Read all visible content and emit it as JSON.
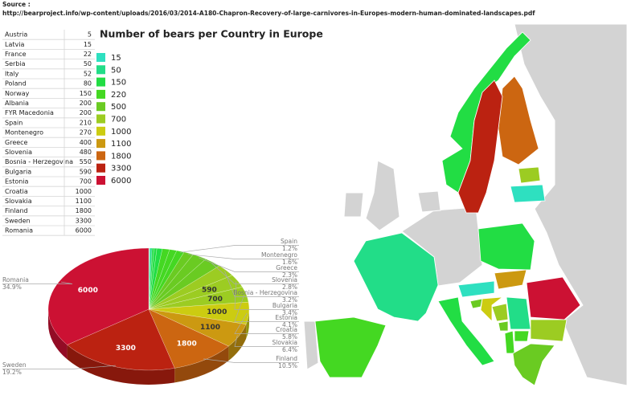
{
  "source": {
    "label": "Source :",
    "url": "http://bearproject.info/wp-content/uploads/2016/03/2014-A180-Chapron-Recovery-of-large-carnivores-in-Europes-modern-human-dominated-landscapes.pdf"
  },
  "chart_data": {
    "type": "pie",
    "title": "Number of bears per Country in Europe",
    "categories": [
      "Austria",
      "Latvia",
      "France",
      "Serbia",
      "Italy",
      "Poland",
      "Norway",
      "Albania",
      "FYR Macedonia",
      "Spain",
      "Montenegro",
      "Greece",
      "Slovenia",
      "Bosnia - Herzegovina",
      "Bulgaria",
      "Estonia",
      "Croatia",
      "Slovakia",
      "Finland",
      "Sweden",
      "Romania"
    ],
    "values": [
      5,
      15,
      22,
      50,
      52,
      80,
      150,
      200,
      200,
      210,
      270,
      400,
      480,
      550,
      590,
      700,
      1000,
      1100,
      1800,
      3300,
      6000
    ],
    "percent_labels": [
      null,
      null,
      null,
      null,
      null,
      null,
      null,
      null,
      null,
      "1.2%",
      "1.6%",
      "2.3%",
      "2.8%",
      "3.2%",
      "3.4%",
      "4.1%",
      "5.8%",
      "6.4%",
      "10.5%",
      "19.2%",
      "34.9%"
    ],
    "legend": [
      {
        "value": 15,
        "color": "#2ee0c0"
      },
      {
        "value": 50,
        "color": "#22dd88"
      },
      {
        "value": 150,
        "color": "#22dd44"
      },
      {
        "value": 220,
        "color": "#44d822"
      },
      {
        "value": 500,
        "color": "#6acb22"
      },
      {
        "value": 700,
        "color": "#9ccc22"
      },
      {
        "value": 1000,
        "color": "#cccc11"
      },
      {
        "value": 1100,
        "color": "#cc9911"
      },
      {
        "value": 1800,
        "color": "#cc6611"
      },
      {
        "value": 3300,
        "color": "#bb2211"
      },
      {
        "value": 6000,
        "color": "#cc1133"
      }
    ]
  }
}
